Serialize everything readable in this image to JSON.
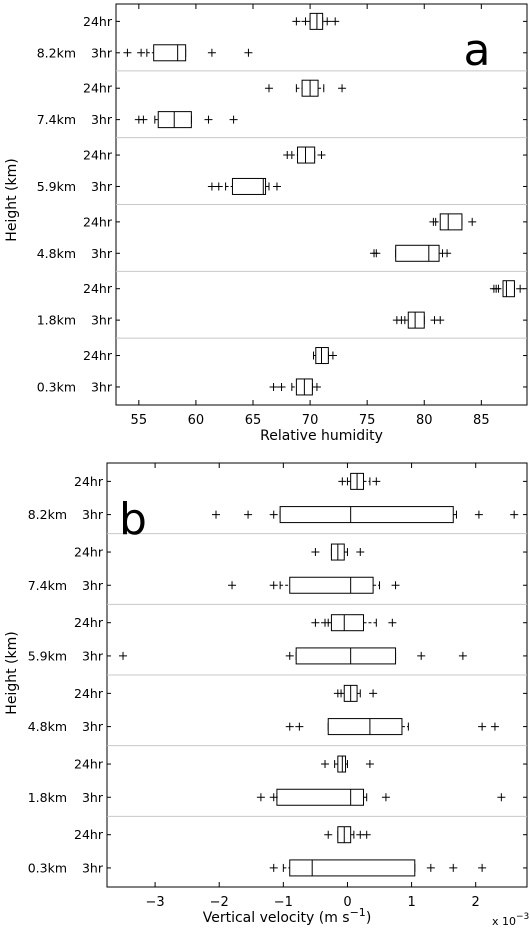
{
  "chart_data": [
    {
      "type": "boxplot",
      "panel_label": "a",
      "xlabel": "Relative humidity",
      "ylabel": "Height (km)",
      "xlim": [
        53,
        89
      ],
      "xticks": [
        55,
        60,
        65,
        70,
        75,
        80,
        85
      ],
      "orientation": "horizontal",
      "groups": [
        {
          "height": "8.2km",
          "boxes": [
            {
              "label": "24hr",
              "q1": 70.0,
              "median": 70.6,
              "q3": 71.1,
              "whisker_low": 70.0,
              "whisker_high": 71.1,
              "outliers": [
                68.8,
                69.6,
                71.5,
                72.2
              ]
            },
            {
              "label": "3hr",
              "q1": 56.3,
              "median": 58.4,
              "q3": 59.1,
              "whisker_low": 55.7,
              "whisker_high": 59.1,
              "outliers": [
                54.0,
                55.2,
                61.4,
                64.6
              ]
            }
          ]
        },
        {
          "height": "7.4km",
          "boxes": [
            {
              "label": "24hr",
              "q1": 69.3,
              "median": 70.0,
              "q3": 70.7,
              "whisker_low": 68.8,
              "whisker_high": 71.2,
              "outliers": [
                66.4,
                72.8
              ]
            },
            {
              "label": "3hr",
              "q1": 56.7,
              "median": 58.1,
              "q3": 59.6,
              "whisker_low": 56.4,
              "whisker_high": 59.6,
              "outliers": [
                55.0,
                55.4,
                61.1,
                63.3
              ]
            }
          ]
        },
        {
          "height": "5.9km",
          "boxes": [
            {
              "label": "24hr",
              "q1": 68.9,
              "median": 69.6,
              "q3": 70.4,
              "whisker_low": 68.4,
              "whisker_high": 70.4,
              "outliers": [
                68.0,
                71.0
              ]
            },
            {
              "label": "3hr",
              "q1": 63.2,
              "median": 65.9,
              "q3": 66.1,
              "whisker_low": 62.6,
              "whisker_high": 66.4,
              "outliers": [
                61.4,
                62.0,
                67.1
              ]
            }
          ]
        },
        {
          "height": "4.8km",
          "boxes": [
            {
              "label": "24hr",
              "q1": 81.4,
              "median": 82.1,
              "q3": 83.3,
              "whisker_low": 81.0,
              "whisker_high": 83.3,
              "outliers": [
                80.8,
                84.2
              ]
            },
            {
              "label": "3hr",
              "q1": 77.5,
              "median": 80.4,
              "q3": 81.3,
              "whisker_low": 77.5,
              "whisker_high": 81.6,
              "outliers": [
                75.6,
                75.8,
                82.0
              ]
            }
          ]
        },
        {
          "height": "1.8km",
          "boxes": [
            {
              "label": "24hr",
              "q1": 86.9,
              "median": 87.2,
              "q3": 87.9,
              "whisker_low": 86.5,
              "whisker_high": 87.9,
              "outliers": [
                86.1,
                86.3,
                88.4
              ]
            },
            {
              "label": "3hr",
              "q1": 78.6,
              "median": 79.2,
              "q3": 80.0,
              "whisker_low": 78.3,
              "whisker_high": 80.0,
              "outliers": [
                77.6,
                78.0,
                80.9,
                81.4
              ]
            }
          ]
        },
        {
          "height": "0.3km",
          "boxes": [
            {
              "label": "24hr",
              "q1": 70.5,
              "median": 71.0,
              "q3": 71.6,
              "whisker_low": 70.3,
              "whisker_high": 71.6,
              "outliers": [
                72.0
              ]
            },
            {
              "label": "3hr",
              "q1": 68.8,
              "median": 69.5,
              "q3": 70.2,
              "whisker_low": 68.4,
              "whisker_high": 70.2,
              "outliers": [
                66.8,
                67.5,
                70.6
              ]
            }
          ]
        }
      ]
    },
    {
      "type": "boxplot",
      "panel_label": "b",
      "xlabel": "Vertical velocity (m s",
      "xlabel_sup": "−1",
      "xlabel_tail": ")",
      "ylabel": "Height (km)",
      "axis_multiplier": "x 10",
      "axis_multiplier_exp": "−3",
      "xlim": [
        -3.75,
        2.8
      ],
      "xticks": [
        -3,
        -2,
        -1,
        0,
        1,
        2
      ],
      "xtick_labels": [
        "−3",
        "−2",
        "−1",
        "0",
        "1",
        "2"
      ],
      "orientation": "horizontal",
      "groups": [
        {
          "height": "8.2km",
          "boxes": [
            {
              "label": "24hr",
              "q1": 0.05,
              "median": 0.15,
              "q3": 0.25,
              "whisker_low": 0.0,
              "whisker_high": 0.35,
              "outliers": [
                -0.08,
                0.45
              ]
            },
            {
              "label": "3hr",
              "q1": -1.05,
              "median": 0.05,
              "q3": 1.65,
              "whisker_low": -1.05,
              "whisker_high": 1.7,
              "outliers": [
                -2.05,
                -1.55,
                -1.15,
                2.05,
                2.6
              ]
            }
          ]
        },
        {
          "height": "7.4km",
          "boxes": [
            {
              "label": "24hr",
              "q1": -0.25,
              "median": -0.15,
              "q3": -0.05,
              "whisker_low": -0.25,
              "whisker_high": 0.0,
              "outliers": [
                -0.5,
                0.2
              ]
            },
            {
              "label": "3hr",
              "q1": -0.9,
              "median": 0.05,
              "q3": 0.4,
              "whisker_low": -1.05,
              "whisker_high": 0.5,
              "outliers": [
                -1.8,
                -1.15,
                0.75
              ]
            }
          ]
        },
        {
          "height": "5.9km",
          "boxes": [
            {
              "label": "24hr",
              "q1": -0.25,
              "median": -0.05,
              "q3": 0.25,
              "whisker_low": -0.3,
              "whisker_high": 0.45,
              "outliers": [
                -0.5,
                -0.35,
                0.7
              ]
            },
            {
              "label": "3hr",
              "q1": -0.8,
              "median": 0.05,
              "q3": 0.75,
              "whisker_low": -0.8,
              "whisker_high": 0.75,
              "outliers": [
                -3.5,
                -0.9,
                1.15,
                1.8
              ]
            }
          ]
        },
        {
          "height": "4.8km",
          "boxes": [
            {
              "label": "24hr",
              "q1": -0.05,
              "median": 0.05,
              "q3": 0.15,
              "whisker_low": -0.1,
              "whisker_high": 0.2,
              "outliers": [
                -0.15,
                0.4
              ]
            },
            {
              "label": "3hr",
              "q1": -0.3,
              "median": 0.35,
              "q3": 0.85,
              "whisker_low": -0.3,
              "whisker_high": 0.95,
              "outliers": [
                -0.9,
                -0.75,
                2.1,
                2.3
              ]
            }
          ]
        },
        {
          "height": "1.8km",
          "boxes": [
            {
              "label": "24hr",
              "q1": -0.15,
              "median": -0.08,
              "q3": -0.03,
              "whisker_low": -0.2,
              "whisker_high": 0.0,
              "outliers": [
                -0.35,
                0.35
              ]
            },
            {
              "label": "3hr",
              "q1": -1.1,
              "median": 0.05,
              "q3": 0.25,
              "whisker_low": -1.1,
              "whisker_high": 0.3,
              "outliers": [
                -1.35,
                -1.15,
                0.6,
                2.4
              ]
            }
          ]
        },
        {
          "height": "0.3km",
          "boxes": [
            {
              "label": "24hr",
              "q1": -0.15,
              "median": -0.05,
              "q3": 0.05,
              "whisker_low": -0.15,
              "whisker_high": 0.1,
              "outliers": [
                -0.3,
                0.2,
                0.3
              ]
            },
            {
              "label": "3hr",
              "q1": -0.9,
              "median": -0.55,
              "q3": 1.05,
              "whisker_low": -1.0,
              "whisker_high": 1.05,
              "outliers": [
                -1.15,
                1.3,
                1.65,
                2.1
              ]
            }
          ]
        }
      ]
    }
  ]
}
